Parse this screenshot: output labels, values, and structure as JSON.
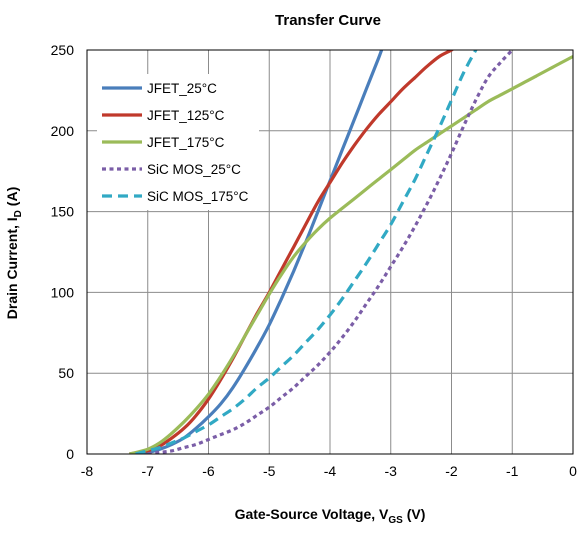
{
  "chart_data": {
    "type": "line",
    "title": "Transfer Curve",
    "xlabel": {
      "main": "Gate-Source Voltage, V",
      "sub": "GS",
      "unit": " (V)"
    },
    "ylabel": {
      "main": "Drain Current, I",
      "sub": "D",
      "unit": " (A)"
    },
    "xlim": [
      -8,
      0
    ],
    "ylim": [
      0,
      250
    ],
    "x_ticks": [
      -8,
      -7,
      -6,
      -5,
      -4,
      -3,
      -2,
      -1,
      0
    ],
    "y_ticks": [
      0,
      50,
      100,
      150,
      200,
      250
    ],
    "grid": true,
    "legend_position": "top-left",
    "series": [
      {
        "name": "JFET_25°C",
        "color": "#4a7ebb",
        "dash": "solid",
        "x": [
          -7.3,
          -7.0,
          -6.8,
          -6.6,
          -6.4,
          -6.2,
          -6.0,
          -5.8,
          -5.6,
          -5.4,
          -5.2,
          -5.0,
          -4.8,
          -4.6,
          -4.4,
          -4.2,
          -4.0,
          -3.8,
          -3.6,
          -3.4,
          -3.2,
          -3.15
        ],
        "y": [
          0,
          1,
          3,
          6,
          10,
          16,
          23,
          31,
          41,
          53,
          66,
          80,
          96,
          113,
          131,
          150,
          169,
          188,
          207,
          226,
          245,
          250
        ]
      },
      {
        "name": "JFET_125°C",
        "color": "#c0392b",
        "dash": "solid",
        "x": [
          -7.3,
          -7.0,
          -6.8,
          -6.6,
          -6.4,
          -6.2,
          -6.0,
          -5.8,
          -5.6,
          -5.4,
          -5.2,
          -5.0,
          -4.8,
          -4.6,
          -4.4,
          -4.2,
          -4.0,
          -3.8,
          -3.6,
          -3.4,
          -3.2,
          -3.0,
          -2.8,
          -2.6,
          -2.4,
          -2.2,
          -2.0,
          -1.95
        ],
        "y": [
          0,
          2,
          5,
          10,
          16,
          24,
          34,
          46,
          59,
          73,
          87,
          100,
          114,
          128,
          142,
          156,
          168,
          180,
          191,
          201,
          210,
          218,
          226,
          233,
          240,
          246,
          250,
          252
        ]
      },
      {
        "name": "JFET_175°C",
        "color": "#9bbb59",
        "dash": "solid",
        "x": [
          -7.3,
          -7.0,
          -6.8,
          -6.6,
          -6.4,
          -6.2,
          -6.0,
          -5.8,
          -5.6,
          -5.4,
          -5.2,
          -5.0,
          -4.8,
          -4.6,
          -4.4,
          -4.2,
          -4.0,
          -3.8,
          -3.6,
          -3.4,
          -3.2,
          -3.0,
          -2.8,
          -2.6,
          -2.4,
          -2.2,
          -2.0,
          -1.8,
          -1.6,
          -1.4,
          -1.2,
          -1.0,
          -0.8,
          -0.6,
          -0.4,
          -0.2,
          0
        ],
        "y": [
          0,
          3,
          7,
          13,
          20,
          28,
          37,
          48,
          60,
          73,
          86,
          99,
          111,
          122,
          131,
          139,
          146,
          152,
          158,
          164,
          170,
          176,
          182,
          188,
          193,
          198,
          203,
          208,
          213,
          218,
          222,
          226,
          230,
          234,
          238,
          242,
          246
        ]
      },
      {
        "name": "SiC MOS_25°C",
        "color": "#7b5ea7",
        "dash": "dotted",
        "x": [
          -7.0,
          -6.8,
          -6.6,
          -6.4,
          -6.2,
          -6.0,
          -5.8,
          -5.6,
          -5.4,
          -5.2,
          -5.0,
          -4.8,
          -4.6,
          -4.4,
          -4.2,
          -4.0,
          -3.8,
          -3.6,
          -3.4,
          -3.2,
          -3.0,
          -2.8,
          -2.6,
          -2.4,
          -2.2,
          -2.0,
          -1.8,
          -1.6,
          -1.4,
          -1.2,
          -1.0
        ],
        "y": [
          0,
          1,
          2,
          4,
          6,
          9,
          12,
          15,
          19,
          24,
          29,
          35,
          41,
          48,
          55,
          63,
          72,
          82,
          93,
          104,
          116,
          128,
          141,
          155,
          170,
          186,
          203,
          219,
          233,
          242,
          250
        ]
      },
      {
        "name": "SiC MOS_175°C",
        "color": "#31a9c4",
        "dash": "dashed",
        "x": [
          -7.2,
          -7.0,
          -6.8,
          -6.6,
          -6.4,
          -6.2,
          -6.0,
          -5.8,
          -5.6,
          -5.4,
          -5.2,
          -5.0,
          -4.8,
          -4.6,
          -4.4,
          -4.2,
          -4.0,
          -3.8,
          -3.6,
          -3.4,
          -3.2,
          -3.0,
          -2.8,
          -2.6,
          -2.4,
          -2.2,
          -2.0,
          -1.8,
          -1.6,
          -1.5
        ],
        "y": [
          0,
          2,
          4,
          7,
          10,
          14,
          18,
          23,
          28,
          34,
          41,
          47,
          54,
          61,
          69,
          77,
          86,
          96,
          107,
          118,
          130,
          142,
          156,
          170,
          186,
          202,
          219,
          236,
          250,
          256
        ]
      }
    ]
  }
}
